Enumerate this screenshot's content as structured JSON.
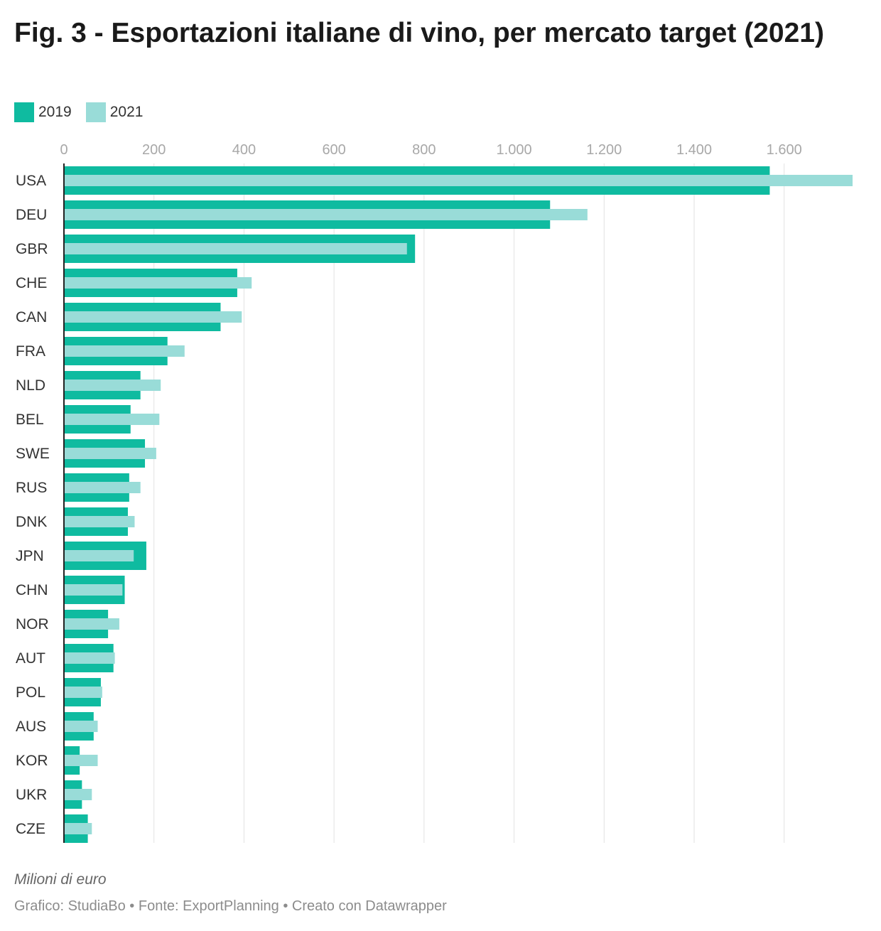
{
  "header": {
    "title": "Fig. 3 - Esportazioni italiane di vino, per mercato target (2021)"
  },
  "legend": {
    "items": [
      {
        "label": "2019",
        "color": "#0fbba0"
      },
      {
        "label": "2021",
        "color": "#99dcd8"
      }
    ]
  },
  "chart_data": {
    "type": "bar",
    "orientation": "horizontal",
    "title": "Fig. 3 - Esportazioni italiane di vino, per mercato target (2021)",
    "categories": [
      "USA",
      "DEU",
      "GBR",
      "CHE",
      "CAN",
      "FRA",
      "NLD",
      "BEL",
      "SWE",
      "RUS",
      "DNK",
      "JPN",
      "CHN",
      "NOR",
      "AUT",
      "POL",
      "AUS",
      "KOR",
      "UKR",
      "CZE"
    ],
    "series": [
      {
        "name": "2019",
        "color": "#0fbba0",
        "values": [
          1568,
          1080,
          780,
          385,
          348,
          230,
          170,
          148,
          180,
          145,
          142,
          183,
          135,
          98,
          110,
          82,
          66,
          35,
          40,
          53
        ]
      },
      {
        "name": "2021",
        "color": "#99dcd8",
        "values": [
          1752,
          1163,
          762,
          417,
          395,
          268,
          215,
          212,
          205,
          170,
          157,
          155,
          130,
          123,
          113,
          85,
          75,
          75,
          62,
          62
        ]
      }
    ],
    "xlim": [
      0,
      1752
    ],
    "xticks": [
      0,
      200,
      400,
      600,
      800,
      1000,
      1200,
      1400,
      1600
    ],
    "xtick_labels": [
      "0",
      "200",
      "400",
      "600",
      "800",
      "1.000",
      "1.200",
      "1.400",
      "1.600"
    ],
    "xlabel": "",
    "grid": true,
    "legend_position": "top-left"
  },
  "footer": {
    "note": "Milioni di euro",
    "credits": "Grafico: StudiaBo • Fonte: ExportPlanning • Creato con Datawrapper"
  }
}
